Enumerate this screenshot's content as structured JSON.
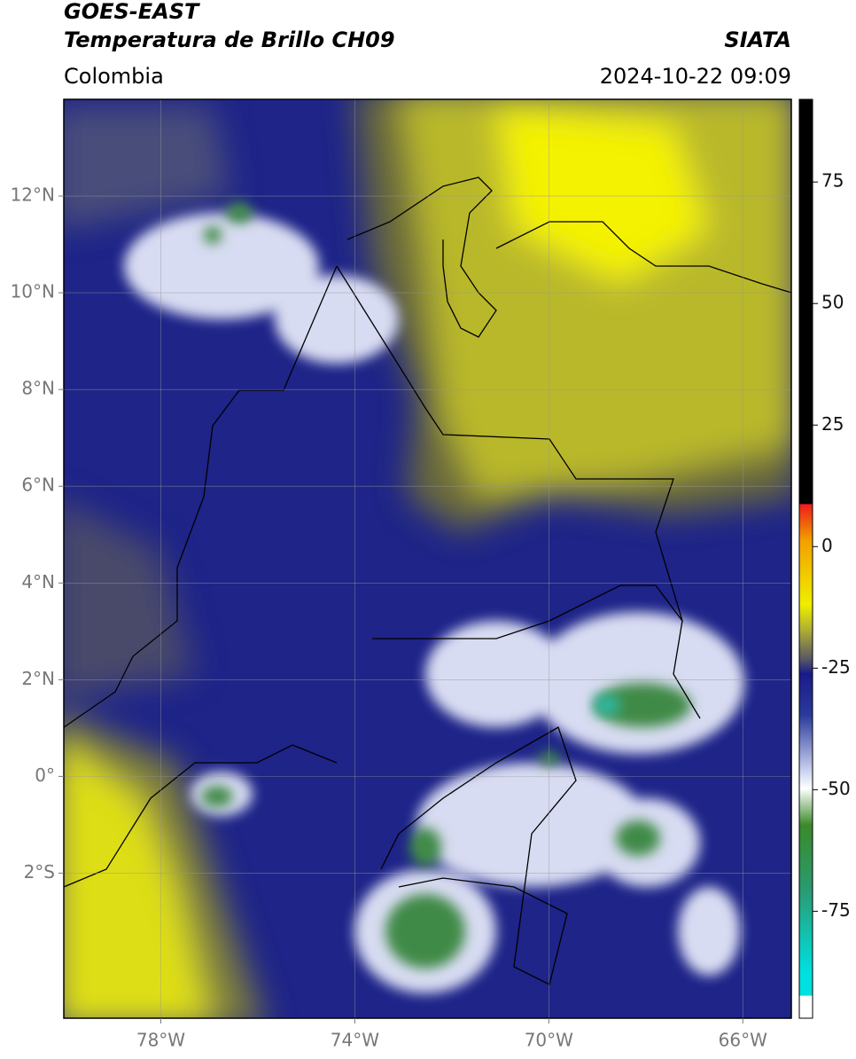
{
  "header": {
    "title": "GOES-EAST",
    "subtitle": "Temperatura de Brillo CH09",
    "source": "SIATA",
    "region": "Colombia",
    "datetime": "2024-10-22 09:09"
  },
  "map": {
    "xlim": [
      -80,
      -65
    ],
    "ylim": [
      -5,
      14
    ],
    "xticks": [
      {
        "value": -78,
        "label": "78°W"
      },
      {
        "value": -74,
        "label": "74°W"
      },
      {
        "value": -70,
        "label": "70°W"
      },
      {
        "value": -66,
        "label": "66°W"
      }
    ],
    "yticks": [
      {
        "value": 12,
        "label": "12°N"
      },
      {
        "value": 10,
        "label": "10°N"
      },
      {
        "value": 8,
        "label": "8°N"
      },
      {
        "value": 6,
        "label": "6°N"
      },
      {
        "value": 4,
        "label": "4°N"
      },
      {
        "value": 2,
        "label": "2°N"
      },
      {
        "value": 0,
        "label": "0°"
      },
      {
        "value": -2,
        "label": "2°S"
      }
    ],
    "grid": true
  },
  "colorbar": {
    "lim": [
      -97,
      92
    ],
    "ticks": [
      75,
      50,
      25,
      0,
      -25,
      -50,
      -75
    ]
  }
}
